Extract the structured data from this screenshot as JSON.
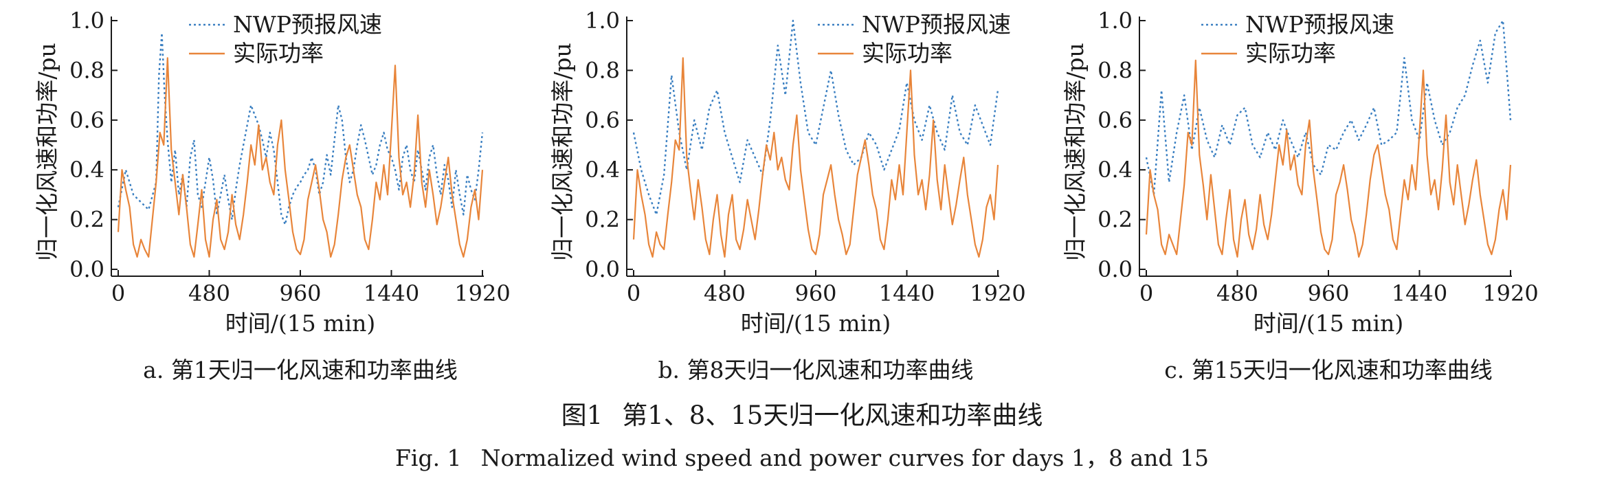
{
  "chart_data": [
    {
      "type": "line",
      "panel": "a",
      "subcaption": "a. 第1天归一化风速和功率曲线",
      "xlabel": "时间/(15 min)",
      "ylabel": "归一化风速和功率/pu",
      "xlim": [
        0,
        1920
      ],
      "ylim": [
        0,
        1.0
      ],
      "xticks": [
        "0",
        "480",
        "960",
        "1440",
        "1920"
      ],
      "yticks": [
        "0.0",
        "0.2",
        "0.4",
        "0.6",
        "0.8",
        "1.0"
      ],
      "legend": "top-left",
      "series": [
        {
          "name": "NWP预报风速",
          "style": "dotted",
          "color": "#3a7fc1",
          "x": [
            0,
            40,
            80,
            120,
            160,
            200,
            215,
            230,
            245,
            260,
            280,
            300,
            320,
            340,
            360,
            380,
            400,
            420,
            440,
            460,
            480,
            500,
            520,
            540,
            560,
            580,
            600,
            620,
            640,
            660,
            680,
            700,
            720,
            740,
            760,
            780,
            800,
            820,
            840,
            860,
            880,
            900,
            920,
            940,
            960,
            980,
            1000,
            1020,
            1040,
            1060,
            1080,
            1100,
            1120,
            1140,
            1160,
            1180,
            1200,
            1220,
            1240,
            1260,
            1280,
            1300,
            1320,
            1340,
            1360,
            1380,
            1400,
            1420,
            1440,
            1460,
            1480,
            1500,
            1520,
            1540,
            1560,
            1580,
            1600,
            1620,
            1640,
            1660,
            1680,
            1700,
            1720,
            1740,
            1760,
            1780,
            1800,
            1820,
            1840,
            1860,
            1880,
            1900,
            1920
          ],
          "y": [
            0.25,
            0.4,
            0.3,
            0.27,
            0.24,
            0.35,
            0.78,
            0.95,
            0.7,
            0.52,
            0.35,
            0.48,
            0.3,
            0.38,
            0.25,
            0.45,
            0.52,
            0.3,
            0.25,
            0.35,
            0.45,
            0.36,
            0.22,
            0.3,
            0.38,
            0.28,
            0.2,
            0.32,
            0.42,
            0.5,
            0.58,
            0.66,
            0.62,
            0.58,
            0.52,
            0.45,
            0.55,
            0.48,
            0.35,
            0.22,
            0.18,
            0.25,
            0.3,
            0.33,
            0.35,
            0.38,
            0.4,
            0.45,
            0.4,
            0.3,
            0.35,
            0.46,
            0.38,
            0.52,
            0.66,
            0.6,
            0.45,
            0.35,
            0.4,
            0.5,
            0.58,
            0.52,
            0.45,
            0.38,
            0.42,
            0.5,
            0.55,
            0.48,
            0.45,
            0.4,
            0.32,
            0.45,
            0.5,
            0.4,
            0.35,
            0.48,
            0.4,
            0.32,
            0.45,
            0.5,
            0.38,
            0.3,
            0.42,
            0.36,
            0.25,
            0.4,
            0.3,
            0.22,
            0.38,
            0.32,
            0.28,
            0.4,
            0.55
          ]
        },
        {
          "name": "实际功率",
          "style": "solid",
          "color": "#e8853a",
          "x": [
            0,
            20,
            40,
            60,
            80,
            100,
            120,
            140,
            160,
            180,
            200,
            220,
            240,
            260,
            280,
            300,
            320,
            340,
            360,
            380,
            400,
            420,
            440,
            460,
            480,
            500,
            520,
            540,
            560,
            580,
            600,
            620,
            640,
            660,
            680,
            700,
            720,
            740,
            760,
            780,
            800,
            820,
            840,
            860,
            880,
            900,
            920,
            940,
            960,
            980,
            1000,
            1020,
            1040,
            1060,
            1080,
            1100,
            1120,
            1140,
            1160,
            1180,
            1200,
            1220,
            1240,
            1260,
            1280,
            1300,
            1320,
            1340,
            1360,
            1380,
            1400,
            1420,
            1440,
            1460,
            1480,
            1500,
            1520,
            1540,
            1560,
            1580,
            1600,
            1620,
            1640,
            1660,
            1680,
            1700,
            1720,
            1740,
            1760,
            1780,
            1800,
            1820,
            1840,
            1860,
            1880,
            1900,
            1920
          ],
          "y": [
            0.15,
            0.4,
            0.32,
            0.25,
            0.1,
            0.05,
            0.12,
            0.08,
            0.05,
            0.2,
            0.35,
            0.55,
            0.5,
            0.85,
            0.48,
            0.35,
            0.22,
            0.38,
            0.25,
            0.1,
            0.05,
            0.18,
            0.32,
            0.12,
            0.05,
            0.2,
            0.28,
            0.12,
            0.08,
            0.15,
            0.3,
            0.18,
            0.12,
            0.22,
            0.35,
            0.5,
            0.42,
            0.58,
            0.4,
            0.45,
            0.35,
            0.3,
            0.5,
            0.6,
            0.4,
            0.28,
            0.15,
            0.08,
            0.06,
            0.12,
            0.28,
            0.35,
            0.42,
            0.32,
            0.2,
            0.15,
            0.05,
            0.1,
            0.22,
            0.36,
            0.45,
            0.5,
            0.4,
            0.3,
            0.25,
            0.12,
            0.08,
            0.2,
            0.35,
            0.28,
            0.42,
            0.3,
            0.55,
            0.82,
            0.45,
            0.3,
            0.35,
            0.25,
            0.38,
            0.62,
            0.35,
            0.25,
            0.4,
            0.3,
            0.18,
            0.25,
            0.35,
            0.45,
            0.3,
            0.2,
            0.1,
            0.05,
            0.12,
            0.25,
            0.32,
            0.2,
            0.4
          ]
        }
      ]
    },
    {
      "type": "line",
      "panel": "b",
      "subcaption": "b. 第8天归一化风速和功率曲线",
      "xlabel": "时间/(15 min)",
      "ylabel": "归一化风速和功率/pu",
      "xlim": [
        0,
        1920
      ],
      "ylim": [
        0,
        1.0
      ],
      "xticks": [
        "0",
        "480",
        "960",
        "1440",
        "1920"
      ],
      "yticks": [
        "0.0",
        "0.2",
        "0.4",
        "0.6",
        "0.8",
        "1.0"
      ],
      "legend": "top-right",
      "series": [
        {
          "name": "NWP预报风速",
          "style": "dotted",
          "color": "#3a7fc1",
          "x": [
            0,
            40,
            80,
            120,
            160,
            200,
            240,
            280,
            320,
            360,
            400,
            440,
            480,
            520,
            560,
            600,
            640,
            680,
            720,
            760,
            800,
            840,
            880,
            920,
            960,
            1000,
            1040,
            1080,
            1120,
            1160,
            1200,
            1240,
            1280,
            1320,
            1360,
            1400,
            1440,
            1480,
            1520,
            1560,
            1600,
            1640,
            1680,
            1720,
            1760,
            1800,
            1840,
            1880,
            1920
          ],
          "y": [
            0.55,
            0.4,
            0.3,
            0.22,
            0.38,
            0.78,
            0.55,
            0.4,
            0.6,
            0.48,
            0.65,
            0.72,
            0.55,
            0.45,
            0.35,
            0.52,
            0.45,
            0.38,
            0.6,
            0.9,
            0.7,
            1.0,
            0.75,
            0.55,
            0.5,
            0.65,
            0.8,
            0.62,
            0.48,
            0.42,
            0.45,
            0.55,
            0.5,
            0.4,
            0.48,
            0.56,
            0.75,
            0.6,
            0.52,
            0.66,
            0.55,
            0.48,
            0.7,
            0.55,
            0.5,
            0.66,
            0.58,
            0.5,
            0.72
          ]
        },
        {
          "name": "实际功率",
          "style": "solid",
          "color": "#e8853a",
          "x": [
            0,
            20,
            40,
            60,
            80,
            100,
            120,
            140,
            160,
            180,
            200,
            220,
            240,
            260,
            280,
            300,
            320,
            340,
            360,
            380,
            400,
            420,
            440,
            460,
            480,
            500,
            520,
            540,
            560,
            580,
            600,
            620,
            640,
            660,
            680,
            700,
            720,
            740,
            760,
            780,
            800,
            820,
            840,
            860,
            880,
            900,
            920,
            940,
            960,
            980,
            1000,
            1020,
            1040,
            1060,
            1080,
            1100,
            1120,
            1140,
            1160,
            1180,
            1200,
            1220,
            1240,
            1260,
            1280,
            1300,
            1320,
            1340,
            1360,
            1380,
            1400,
            1420,
            1440,
            1460,
            1480,
            1500,
            1520,
            1540,
            1560,
            1580,
            1600,
            1620,
            1640,
            1660,
            1680,
            1700,
            1720,
            1740,
            1760,
            1780,
            1800,
            1820,
            1840,
            1860,
            1880,
            1900,
            1920
          ],
          "y": [
            0.12,
            0.4,
            0.3,
            0.22,
            0.1,
            0.05,
            0.15,
            0.1,
            0.08,
            0.22,
            0.35,
            0.52,
            0.48,
            0.85,
            0.45,
            0.32,
            0.2,
            0.36,
            0.25,
            0.12,
            0.06,
            0.2,
            0.3,
            0.14,
            0.05,
            0.22,
            0.3,
            0.12,
            0.08,
            0.16,
            0.28,
            0.2,
            0.12,
            0.24,
            0.38,
            0.5,
            0.44,
            0.55,
            0.4,
            0.45,
            0.36,
            0.32,
            0.5,
            0.62,
            0.4,
            0.28,
            0.16,
            0.08,
            0.06,
            0.14,
            0.3,
            0.36,
            0.42,
            0.3,
            0.2,
            0.14,
            0.06,
            0.1,
            0.24,
            0.38,
            0.45,
            0.52,
            0.42,
            0.3,
            0.24,
            0.12,
            0.08,
            0.2,
            0.36,
            0.28,
            0.42,
            0.3,
            0.55,
            0.8,
            0.46,
            0.3,
            0.36,
            0.24,
            0.38,
            0.6,
            0.36,
            0.24,
            0.42,
            0.3,
            0.18,
            0.26,
            0.36,
            0.45,
            0.3,
            0.2,
            0.1,
            0.05,
            0.12,
            0.25,
            0.3,
            0.2,
            0.42
          ]
        }
      ]
    },
    {
      "type": "line",
      "panel": "c",
      "subcaption": "c. 第15天归一化风速和功率曲线",
      "xlabel": "时间/(15 min)",
      "ylabel": "归一化风速和功率/pu",
      "xlim": [
        0,
        1920
      ],
      "ylim": [
        0,
        1.0
      ],
      "xticks": [
        "0",
        "480",
        "960",
        "1440",
        "1920"
      ],
      "yticks": [
        "0.0",
        "0.2",
        "0.4",
        "0.6",
        "0.8",
        "1.0"
      ],
      "legend": "top-right",
      "series": [
        {
          "name": "NWP预报风速",
          "style": "dotted",
          "color": "#3a7fc1",
          "x": [
            0,
            40,
            80,
            120,
            160,
            200,
            240,
            280,
            320,
            360,
            400,
            440,
            480,
            520,
            560,
            600,
            640,
            680,
            720,
            760,
            800,
            840,
            880,
            920,
            960,
            1000,
            1040,
            1080,
            1120,
            1160,
            1200,
            1240,
            1280,
            1320,
            1360,
            1400,
            1440,
            1480,
            1520,
            1560,
            1600,
            1640,
            1680,
            1720,
            1760,
            1800,
            1840,
            1880,
            1920
          ],
          "y": [
            0.45,
            0.3,
            0.72,
            0.35,
            0.55,
            0.7,
            0.48,
            0.65,
            0.52,
            0.45,
            0.58,
            0.5,
            0.62,
            0.65,
            0.5,
            0.45,
            0.55,
            0.48,
            0.6,
            0.52,
            0.45,
            0.55,
            0.42,
            0.38,
            0.5,
            0.48,
            0.55,
            0.6,
            0.52,
            0.58,
            0.65,
            0.5,
            0.52,
            0.55,
            0.85,
            0.6,
            0.52,
            0.75,
            0.6,
            0.5,
            0.55,
            0.65,
            0.7,
            0.82,
            0.92,
            0.75,
            0.95,
            1.0,
            0.6
          ]
        },
        {
          "name": "实际功率",
          "style": "solid",
          "color": "#e8853a",
          "x": [
            0,
            20,
            40,
            60,
            80,
            100,
            120,
            140,
            160,
            180,
            200,
            220,
            240,
            260,
            280,
            300,
            320,
            340,
            360,
            380,
            400,
            420,
            440,
            460,
            480,
            500,
            520,
            540,
            560,
            580,
            600,
            620,
            640,
            660,
            680,
            700,
            720,
            740,
            760,
            780,
            800,
            820,
            840,
            860,
            880,
            900,
            920,
            940,
            960,
            980,
            1000,
            1020,
            1040,
            1060,
            1080,
            1100,
            1120,
            1140,
            1160,
            1180,
            1200,
            1220,
            1240,
            1260,
            1280,
            1300,
            1320,
            1340,
            1360,
            1380,
            1400,
            1420,
            1440,
            1460,
            1480,
            1500,
            1520,
            1540,
            1560,
            1580,
            1600,
            1620,
            1640,
            1660,
            1680,
            1700,
            1720,
            1740,
            1760,
            1780,
            1800,
            1820,
            1840,
            1860,
            1880,
            1900,
            1920
          ],
          "y": [
            0.14,
            0.4,
            0.3,
            0.24,
            0.1,
            0.06,
            0.14,
            0.1,
            0.06,
            0.2,
            0.34,
            0.55,
            0.5,
            0.84,
            0.46,
            0.34,
            0.2,
            0.38,
            0.24,
            0.1,
            0.06,
            0.2,
            0.32,
            0.12,
            0.05,
            0.2,
            0.28,
            0.14,
            0.08,
            0.16,
            0.3,
            0.18,
            0.12,
            0.22,
            0.36,
            0.5,
            0.42,
            0.56,
            0.4,
            0.46,
            0.34,
            0.3,
            0.5,
            0.6,
            0.4,
            0.28,
            0.15,
            0.08,
            0.06,
            0.12,
            0.3,
            0.35,
            0.42,
            0.32,
            0.2,
            0.14,
            0.05,
            0.1,
            0.22,
            0.36,
            0.46,
            0.5,
            0.4,
            0.3,
            0.24,
            0.12,
            0.08,
            0.22,
            0.36,
            0.28,
            0.42,
            0.32,
            0.55,
            0.8,
            0.46,
            0.3,
            0.36,
            0.24,
            0.4,
            0.62,
            0.35,
            0.26,
            0.42,
            0.3,
            0.18,
            0.26,
            0.36,
            0.44,
            0.3,
            0.2,
            0.1,
            0.06,
            0.12,
            0.24,
            0.32,
            0.2,
            0.42
          ]
        }
      ]
    }
  ],
  "figure": {
    "title": "图1　第1、8、15天归一化风速和功率曲线",
    "title_label": "图1",
    "title_text": "第1、8、15天归一化风速和功率曲线",
    "title_en_label": "Fig. 1",
    "title_en_text": "Normalized wind speed and power curves for days 1，8 and 15"
  }
}
